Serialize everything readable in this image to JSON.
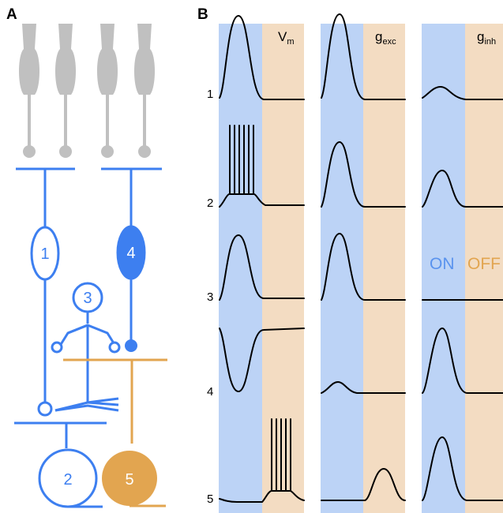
{
  "panels": {
    "a": "A",
    "b": "B"
  },
  "panel_a": {
    "cells": [
      {
        "id": "1",
        "label": "1",
        "type": "ON bipolar"
      },
      {
        "id": "2",
        "label": "2",
        "type": "ON ganglion"
      },
      {
        "id": "3",
        "label": "3",
        "type": "amacrine"
      },
      {
        "id": "4",
        "label": "4",
        "type": "ON bipolar"
      },
      {
        "id": "5",
        "label": "5",
        "type": "OFF ganglion"
      }
    ]
  },
  "panel_b": {
    "columns": [
      {
        "id": "vm",
        "main": "V",
        "sub": "m"
      },
      {
        "id": "gexc",
        "main": "g",
        "sub": "exc"
      },
      {
        "id": "ginh",
        "main": "g",
        "sub": "inh"
      }
    ],
    "rows": [
      "1",
      "2",
      "3",
      "4",
      "5"
    ],
    "legend": {
      "on": "ON",
      "off": "OFF"
    }
  },
  "colors": {
    "on_cell": "#3d7ff0",
    "on_fill": "#3d7ff0",
    "off_cell": "#e2a550",
    "photoreceptor": "#c0c0c0",
    "on_background": "#bcd3f6",
    "off_background": "#f3dcc2",
    "trace": "#000000",
    "on_text": "#5a93ee",
    "off_text": "#e2a550"
  }
}
